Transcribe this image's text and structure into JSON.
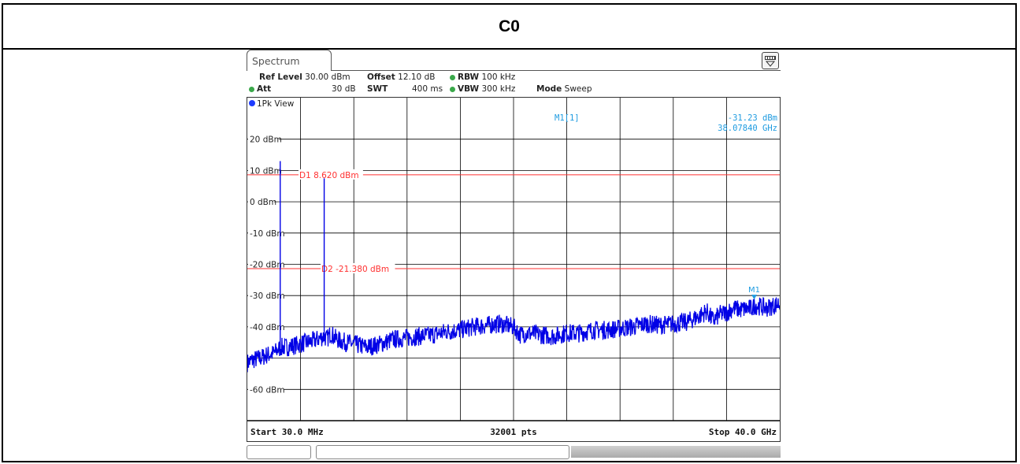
{
  "page_title": "C0",
  "tab_label": "Spectrum",
  "settings": {
    "ref_level_label": "Ref Level",
    "ref_level_value": "30.00 dBm",
    "offset_label": "Offset",
    "offset_value": "12.10 dB",
    "rbw_label": "RBW",
    "rbw_value": "100 kHz",
    "att_label": "Att",
    "att_value": "30 dB",
    "swt_label": "SWT",
    "swt_value": "400 ms",
    "vbw_label": "VBW",
    "vbw_value": "300 kHz",
    "mode_label": "Mode",
    "mode_value": "Sweep"
  },
  "trace_label": "1Pk View",
  "marker_readout": {
    "name": "M1[1]",
    "level": "-31.23 dBm",
    "frequency": "38.07840 GHz"
  },
  "footer": {
    "start": "Start 30.0 MHz",
    "points": "32001 pts",
    "stop": "Stop 40.0 GHz"
  },
  "colors": {
    "trace": "#0000e6",
    "display_line": "#ff3030",
    "marker": "#1e9be0",
    "grid": "#000000"
  },
  "chart_data": {
    "type": "line",
    "title": "",
    "xlabel": "",
    "ylabel": "",
    "xlim": [
      0.03,
      40.0
    ],
    "ylim": [
      -70,
      30
    ],
    "x_unit": "GHz",
    "y_unit": "dBm",
    "grid": true,
    "y_tick_labels": [
      {
        "value": 20,
        "label": "20 dBm"
      },
      {
        "value": 10,
        "label": "10 dBm"
      },
      {
        "value": 0,
        "label": "0 dBm"
      },
      {
        "value": -10,
        "label": "-10 dBm"
      },
      {
        "value": -20,
        "label": "-20 dBm"
      },
      {
        "value": -30,
        "label": "-30 dBm"
      },
      {
        "value": -40,
        "label": "-40 dBm"
      },
      {
        "value": -60,
        "label": "-60 dBm"
      }
    ],
    "display_lines": [
      {
        "name": "D1",
        "value": 8.62,
        "label": "D1  8.620 dBm"
      },
      {
        "name": "D2",
        "value": -21.38,
        "label": "D2  -21.380 dBm"
      }
    ],
    "series": [
      {
        "x": [
          0.03,
          0.5,
          1.0,
          1.5,
          2.0,
          2.4,
          2.5,
          2.6,
          3.0,
          4.0,
          5.0,
          5.8,
          6.0,
          6.3,
          6.6,
          7.0,
          8.0,
          9.0,
          10.0,
          11.0,
          12.0,
          13.0,
          14.0,
          15.0,
          16.0,
          17.0,
          18.0,
          19.0,
          20.0,
          20.5,
          21.0,
          22.0,
          23.0,
          24.0,
          25.0,
          26.0,
          27.0,
          28.0,
          29.0,
          30.0,
          31.0,
          32.0,
          33.0,
          34.0,
          34.5,
          35.0,
          35.5,
          36.0,
          36.5,
          37.0,
          38.0,
          38.08,
          39.0,
          40.0
        ],
        "y": [
          -51.5,
          -50.5,
          -50.0,
          -49.0,
          -48.5,
          -47.0,
          8.6,
          -46.5,
          -46.5,
          -45.5,
          -44.5,
          -43.0,
          -44.0,
          -42.0,
          -43.5,
          -44.5,
          -45.5,
          -46.5,
          -45.5,
          -44.0,
          -43.5,
          -43.0,
          -42.5,
          -41.5,
          -41.0,
          -40.0,
          -39.5,
          -39.0,
          -40.0,
          -42.5,
          -42.0,
          -42.5,
          -43.0,
          -42.0,
          -42.0,
          -41.0,
          -41.0,
          -40.5,
          -40.0,
          -39.0,
          -39.5,
          -39.0,
          -38.5,
          -36.5,
          -35.0,
          -38.0,
          -36.0,
          -35.5,
          -34.0,
          -34.5,
          -34.0,
          -33.0,
          -34.0,
          -32.5
        ]
      }
    ],
    "spikes": [
      {
        "x": 2.5,
        "y": 13.0
      },
      {
        "x": 5.8,
        "y": 7.5
      }
    ],
    "markers": [
      {
        "name": "M1",
        "x": 38.0784,
        "y": -31.23
      }
    ]
  }
}
